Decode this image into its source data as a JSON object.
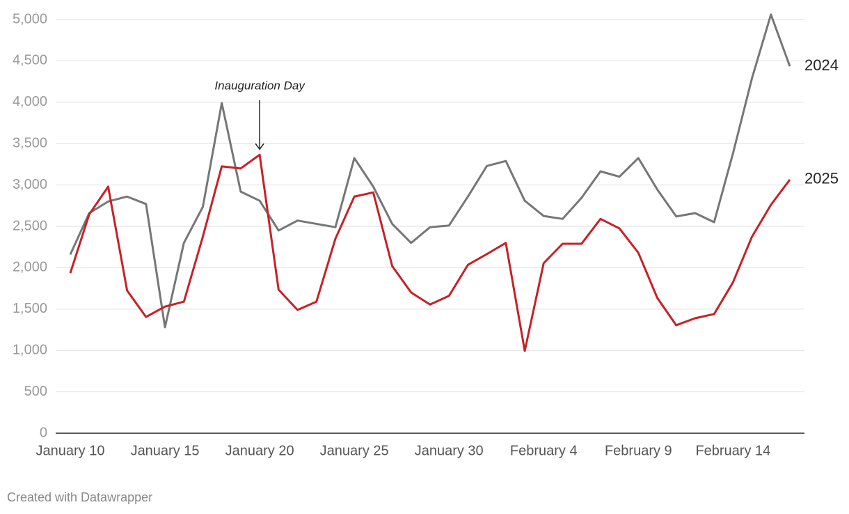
{
  "chart_data": {
    "type": "line",
    "annotation": "Inauguration Day",
    "annotation_category": 10,
    "footer": "Created with Datawrapper",
    "categories": [
      "January 10",
      null,
      null,
      null,
      null,
      "January 15",
      null,
      null,
      null,
      null,
      "January 20",
      null,
      null,
      null,
      null,
      "January 25",
      null,
      null,
      null,
      null,
      "January 30",
      null,
      null,
      null,
      null,
      "February 4",
      null,
      null,
      null,
      null,
      "February 9",
      null,
      null,
      null,
      null,
      "February 14",
      null,
      null,
      null
    ],
    "series": [
      {
        "name": "2024",
        "color": "#767676",
        "values": [
          2160,
          2660,
          2800,
          2860,
          2770,
          1280,
          2300,
          2735,
          3990,
          2920,
          2810,
          2450,
          2570,
          2530,
          2490,
          3325,
          2980,
          2530,
          2300,
          2490,
          2510,
          2860,
          3230,
          3290,
          2810,
          2625,
          2590,
          2845,
          3165,
          3100,
          3325,
          2945,
          2620,
          2660,
          2550,
          3385,
          4290,
          5060,
          4435
        ]
      },
      {
        "name": "2025",
        "color": "#c62127",
        "values": [
          1935,
          2645,
          2980,
          1725,
          1405,
          1530,
          1590,
          2375,
          3225,
          3200,
          3365,
          1735,
          1490,
          1590,
          2350,
          2860,
          2910,
          2020,
          1700,
          1555,
          1660,
          2035,
          2165,
          2300,
          995,
          2055,
          2290,
          2290,
          2590,
          2475,
          2180,
          1635,
          1305,
          1390,
          1440,
          1825,
          2375,
          2760,
          3065
        ]
      }
    ],
    "ylim": [
      0,
      5000
    ],
    "yticks": [
      0,
      500,
      {
        "value": 1000,
        "label": "1,000"
      },
      {
        "value": 1500,
        "label": "1,500"
      },
      {
        "value": 2000,
        "label": "2,000"
      },
      {
        "value": 2500,
        "label": "2,500"
      },
      {
        "value": 3000,
        "label": "3,000"
      },
      {
        "value": 3500,
        "label": "3,500"
      },
      {
        "value": 4000,
        "label": "4,000"
      },
      {
        "value": 4500,
        "label": "4,500"
      },
      {
        "value": 5000,
        "label": "5,000"
      }
    ],
    "grid": true
  }
}
